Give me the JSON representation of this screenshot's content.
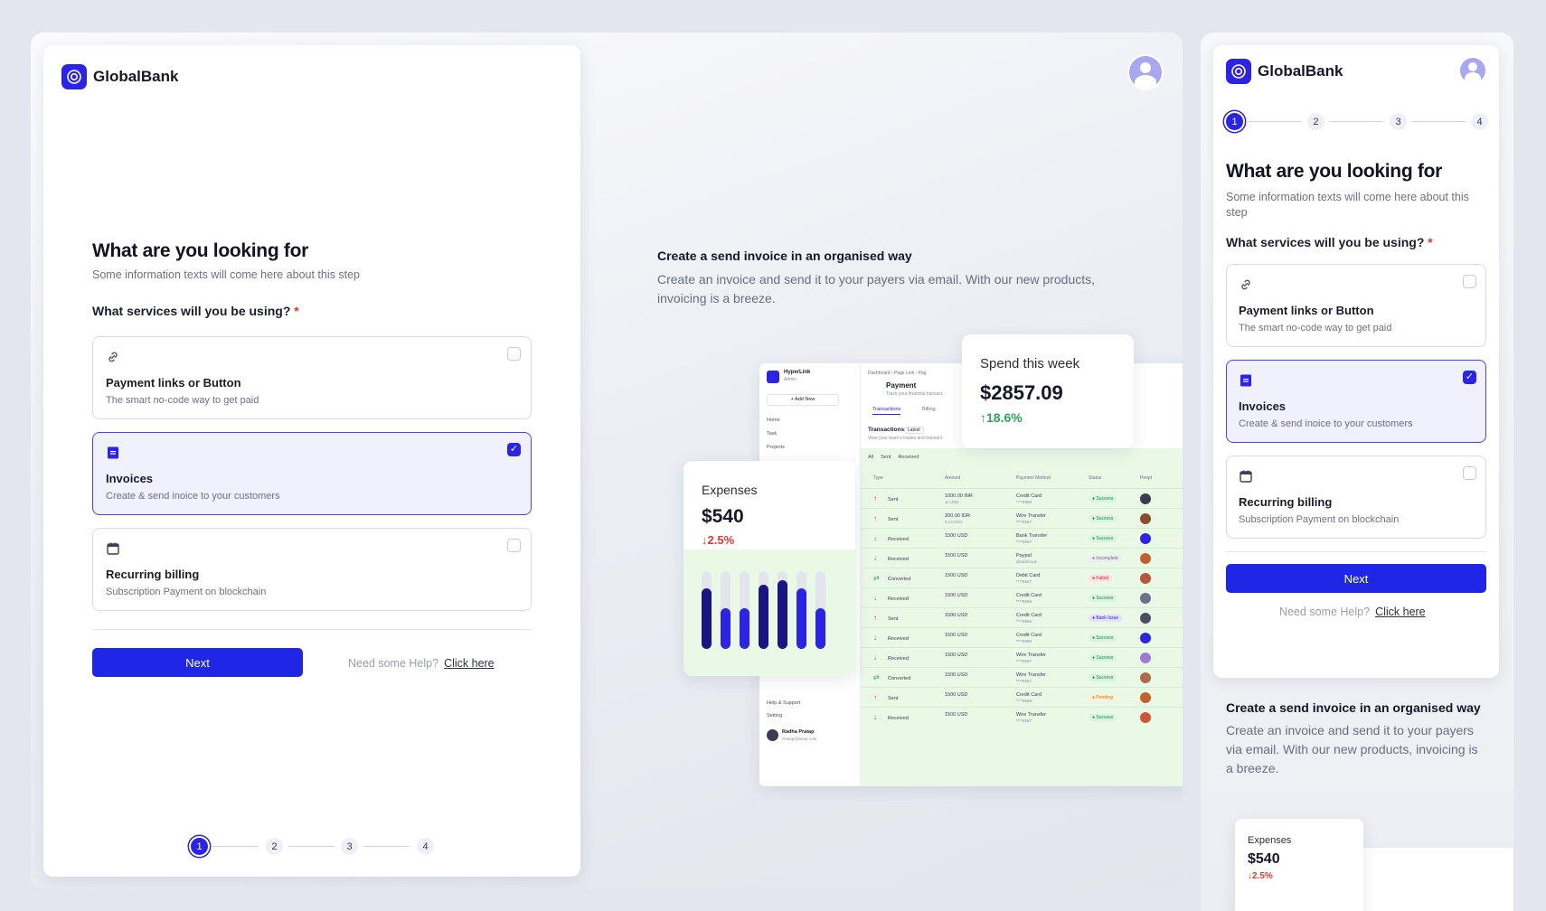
{
  "brand": {
    "name": "GlobalBank"
  },
  "form": {
    "title": "What are you looking for",
    "subtitle": "Some information texts will come here about this step",
    "question": "What services will you be using?",
    "required_mark": "*",
    "options": [
      {
        "title": "Payment links or Button",
        "desc": "The smart no-code way to get paid",
        "icon": "link-icon",
        "selected": false
      },
      {
        "title": "Invoices",
        "desc": "Create & send inoice to your customers",
        "icon": "invoice-icon",
        "selected": true
      },
      {
        "title": "Recurring billing",
        "desc": "Subscription Payment on blockchain",
        "icon": "calendar-icon",
        "selected": false
      }
    ],
    "next_label": "Next",
    "help_text": "Need some Help?",
    "help_link": "Click here",
    "steps": [
      "1",
      "2",
      "3",
      "4"
    ],
    "active_step": 1
  },
  "feature": {
    "title": "Create a send invoice in an organised way",
    "desc": "Create an invoice and send it to your payers via email. With our new products, invoicing is a breeze."
  },
  "expenses": {
    "label": "Expenses",
    "amount": "$540",
    "change": "2.5%",
    "change_dir": "down",
    "bars": [
      0.78,
      0.52,
      0.52,
      0.82,
      0.88,
      0.78,
      0.52
    ]
  },
  "spend": {
    "label": "Spend this week",
    "amount": "$2857.09",
    "change": "18.6%",
    "change_dir": "up"
  },
  "dashboard": {
    "app_name": "HyperLink",
    "app_role": "Admin",
    "add_new": "+ Add New",
    "nav": [
      "Home",
      "Task",
      "Projects"
    ],
    "nav_bottom": [
      "Help & Support",
      "Setting"
    ],
    "user_name": "Radha Pratap",
    "user_email": "Pratap@linear.com",
    "breadcrumb": "Dashboard › Page Link › Pag",
    "page_title": "Payment",
    "page_sub": "Track your financial transact",
    "tabs": [
      "Transactions",
      "Billing"
    ],
    "section_title": "Transactions",
    "section_badge": "Latest",
    "section_sub": "View your team's trades and transact",
    "filters": [
      "All",
      "Sent",
      "Received"
    ],
    "columns": [
      "Type",
      "Amount",
      "Payment Method",
      "Status",
      "Peopl"
    ],
    "rows": [
      {
        "type": "Sent",
        "amount": "1000.00 INR",
        "amount_sub": "11 USD",
        "method": "Credit Card",
        "method_sub": "****6969",
        "status": "Success"
      },
      {
        "type": "Sent",
        "amount": "200.00 IDR",
        "amount_sub": "0.13 USD",
        "method": "Wire Transfer",
        "method_sub": "****6567",
        "status": "Success"
      },
      {
        "type": "Received",
        "amount": "1500 USD",
        "amount_sub": "",
        "method": "Bank Transfer",
        "method_sub": "****6567",
        "status": "Success"
      },
      {
        "type": "Received",
        "amount": "1500 USD",
        "amount_sub": "",
        "method": "Paypal",
        "method_sub": "@sarhcook",
        "status": "Incomplete"
      },
      {
        "type": "Converted",
        "amount": "1500 USD",
        "amount_sub": "",
        "method": "Debit Card",
        "method_sub": "****6567",
        "status": "Failed"
      },
      {
        "type": "Received",
        "amount": "1500 USD",
        "amount_sub": "",
        "method": "Credit Card",
        "method_sub": "****6969",
        "status": "Success"
      },
      {
        "type": "Sent",
        "amount": "1500 USD",
        "amount_sub": "",
        "method": "Credit Card",
        "method_sub": "****6969",
        "status": "Bank Issue"
      },
      {
        "type": "Received",
        "amount": "1500 USD",
        "amount_sub": "",
        "method": "Credit Card",
        "method_sub": "****6969",
        "status": "Success"
      },
      {
        "type": "Received",
        "amount": "1500 USD",
        "amount_sub": "",
        "method": "Wire Transfer",
        "method_sub": "****6567",
        "status": "Success"
      },
      {
        "type": "Converted",
        "amount": "1500 USD",
        "amount_sub": "",
        "method": "Wire Transfer",
        "method_sub": "****6567",
        "status": "Success"
      },
      {
        "type": "Sent",
        "amount": "1500 USD",
        "amount_sub": "",
        "method": "Credit Card",
        "method_sub": "****6969",
        "status": "Pending"
      },
      {
        "type": "Received",
        "amount": "1500 USD",
        "amount_sub": "",
        "method": "Wire Transfer",
        "method_sub": "****6567",
        "status": "Success"
      }
    ]
  },
  "colors": {
    "accent": "#2b24e8",
    "success": "#27a55b",
    "danger": "#e5372b",
    "panel": "#f4f5f9"
  }
}
